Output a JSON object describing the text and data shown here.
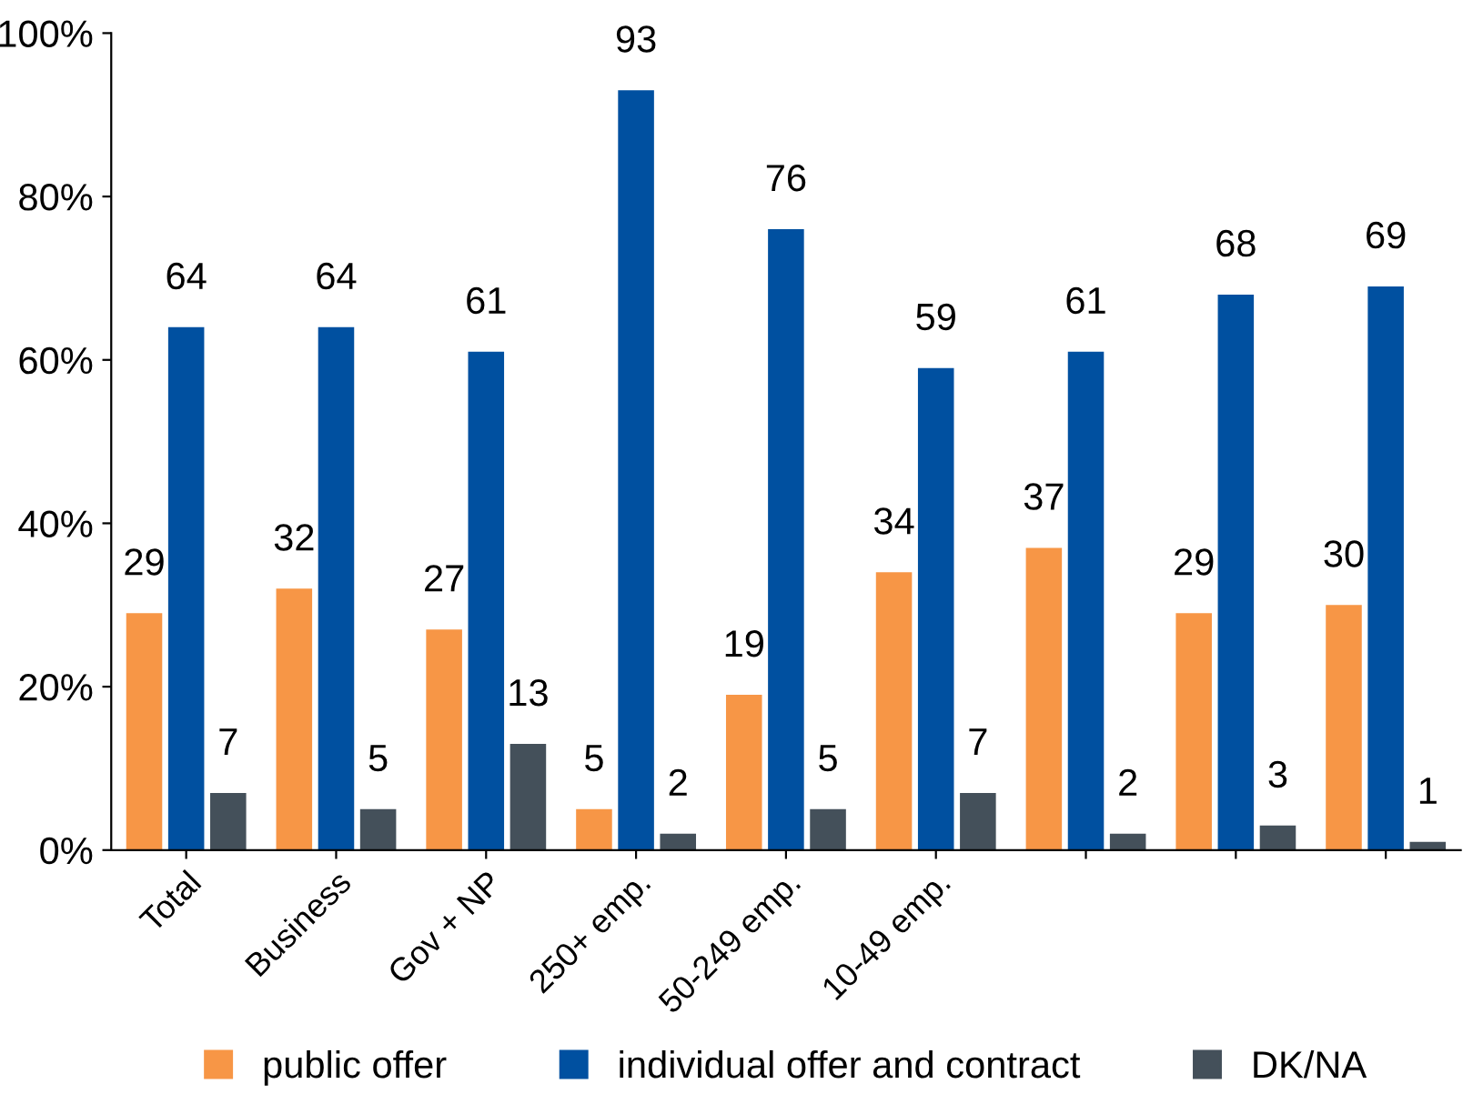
{
  "chart_data": {
    "type": "bar",
    "categories": [
      "Total",
      "Business",
      "Gov + NP",
      "250+ emp.",
      "50-249 emp.",
      "10-49 emp.",
      null,
      null,
      null
    ],
    "series": [
      {
        "name": "public offer",
        "color": "#f79646",
        "values": [
          29,
          32,
          27,
          5,
          19,
          34,
          37,
          29,
          30
        ]
      },
      {
        "name": "individual offer and contract",
        "color": "#0050a0",
        "values": [
          64,
          64,
          61,
          93,
          76,
          59,
          61,
          68,
          69
        ]
      },
      {
        "name": "DK/NA",
        "color": "#44505a",
        "values": [
          7,
          5,
          13,
          2,
          5,
          7,
          2,
          3,
          1
        ]
      }
    ],
    "ylim": [
      0,
      100
    ],
    "yticks": [
      {
        "value": 0,
        "label": "0%"
      },
      {
        "value": 20,
        "label": "20%"
      },
      {
        "value": 40,
        "label": "40%"
      },
      {
        "value": 60,
        "label": "60%"
      },
      {
        "value": 80,
        "label": "80%"
      },
      {
        "value": 100,
        "label": "100%"
      }
    ],
    "data_labels": true,
    "legend": "bottom",
    "grid": false
  }
}
